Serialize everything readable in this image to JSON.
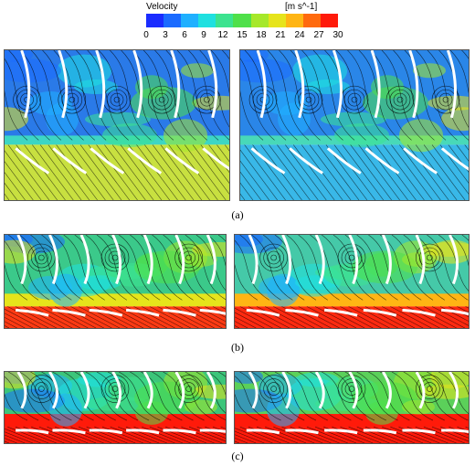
{
  "legend": {
    "title": "Velocity",
    "unit": "[m s^-1]",
    "ticks": [
      "0",
      "3",
      "6",
      "9",
      "12",
      "15",
      "18",
      "21",
      "24",
      "27",
      "30"
    ],
    "colors": [
      "#1a2cff",
      "#1b6bff",
      "#1fb0ff",
      "#1fe0e0",
      "#3ce38f",
      "#4fe04a",
      "#a6e82a",
      "#e6e41b",
      "#ffb514",
      "#ff6a0d",
      "#ff1a0a"
    ]
  },
  "captions": [
    "(a)",
    "(b)",
    "(c)"
  ],
  "panels": [
    {
      "id": "a-left",
      "row": "a",
      "side": "left",
      "upper": "#2a7ae8",
      "mid": "#3dd6c4",
      "lower": "#c8e040"
    },
    {
      "id": "a-right",
      "row": "a",
      "side": "right",
      "upper": "#2a86e8",
      "mid": "#48d9b8",
      "lower": "#39b8e8"
    },
    {
      "id": "b-left",
      "row": "b",
      "side": "left",
      "upper": "#3bc98a",
      "mid": "#e6e41b",
      "lower": "#ff3a14"
    },
    {
      "id": "b-right",
      "row": "b",
      "side": "right",
      "upper": "#45c9a8",
      "mid": "#ffb514",
      "lower": "#ff2a10"
    },
    {
      "id": "c-left",
      "row": "c",
      "side": "left",
      "upper": "#3cc57a",
      "mid": "#ff1a0a",
      "lower": "#ff1a0a"
    },
    {
      "id": "c-right",
      "row": "c",
      "side": "right",
      "upper": "#5bd05a",
      "mid": "#ff1a0a",
      "lower": "#ff1a0a"
    }
  ]
}
